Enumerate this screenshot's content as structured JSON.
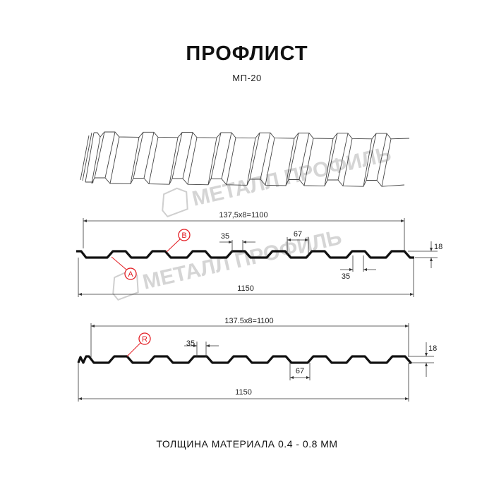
{
  "header": {
    "title": "ПРОФЛИСТ",
    "subtitle": "МП-20"
  },
  "watermark": {
    "text": "МЕТАЛЛ ПРОФИЛЬ"
  },
  "profile_1": {
    "pitch_label": "137,5x8=1100",
    "width_label": "1150",
    "rib_top_label": "35",
    "rib_bottom_label": "35",
    "gap_label": "67",
    "height_label": "18",
    "markers": [
      "B",
      "A"
    ]
  },
  "profile_2": {
    "pitch_label": "137.5x8=1100",
    "width_label": "1150",
    "rib_top_label": "35",
    "gap_label": "67",
    "height_label": "18",
    "markers": [
      "R"
    ]
  },
  "footer": {
    "thickness": "ТОЛЩИНА МАТЕРИАЛА 0.4 - 0.8 ММ"
  },
  "colors": {
    "line": "#111111",
    "marker": "#e31e24",
    "watermark": "#c8c8c8"
  }
}
